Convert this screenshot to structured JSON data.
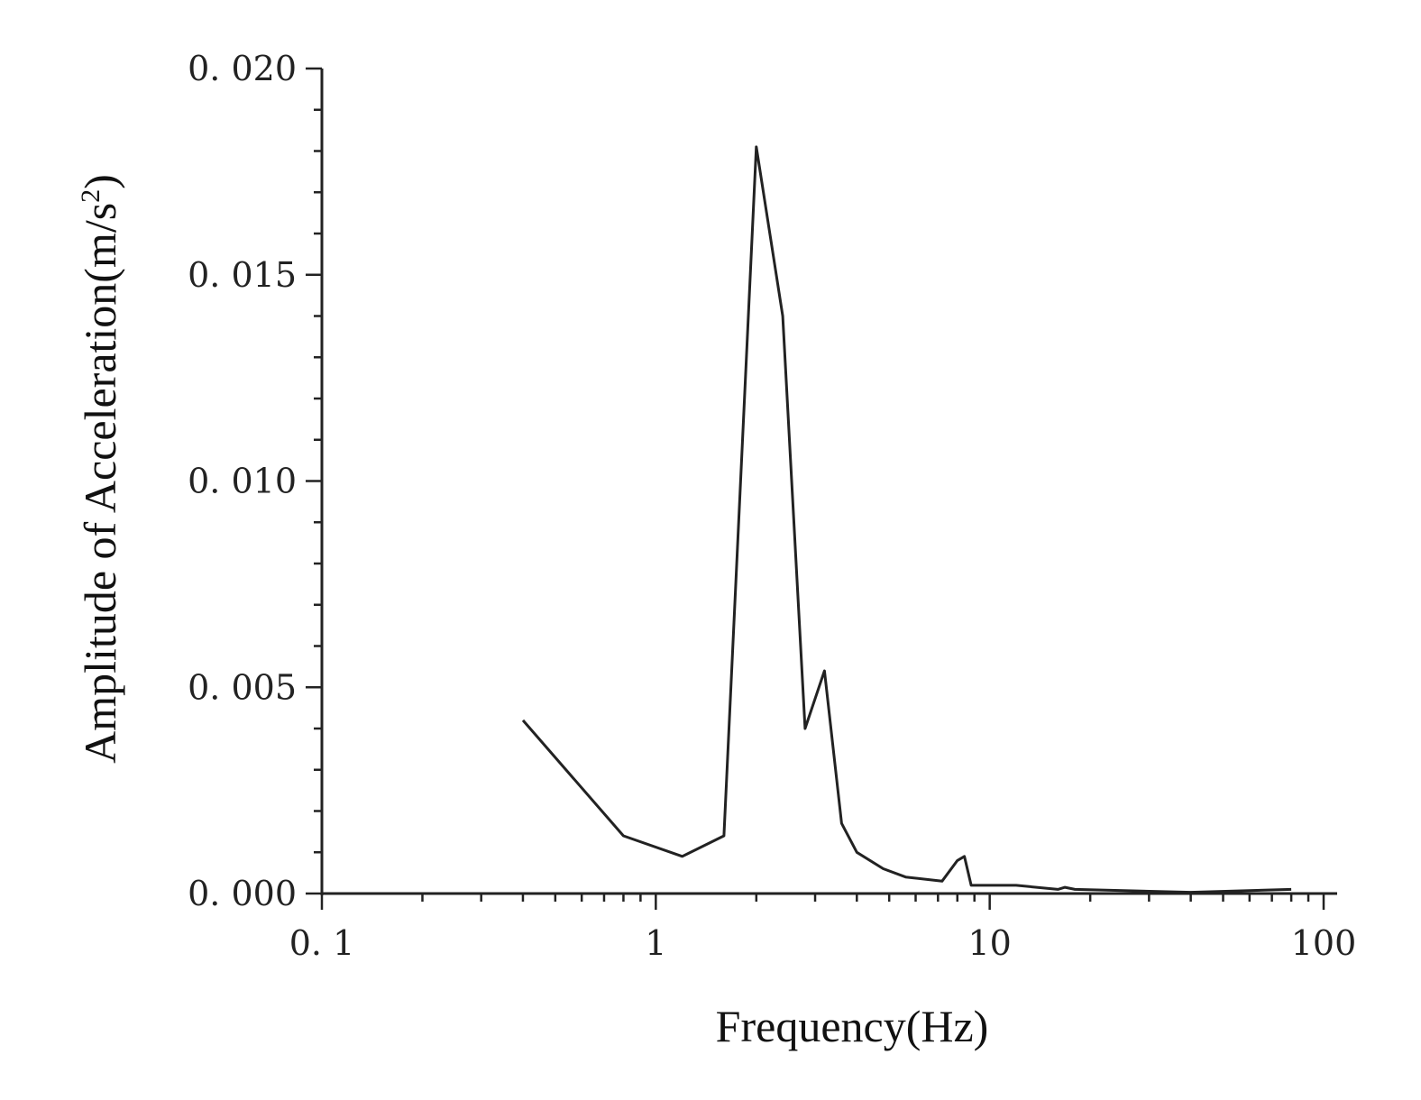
{
  "chart_data": {
    "type": "line",
    "xlabel": "Frequency(Hz)",
    "ylabel_main": "Amplitude of  Acceleration(m/s",
    "ylabel_sup": "2",
    "ylabel_close": ")",
    "xscale": "log",
    "xlim": [
      0.1,
      100
    ],
    "ylim": [
      0,
      0.02
    ],
    "xticks": [
      {
        "value": 0.1,
        "label": "0. 1"
      },
      {
        "value": 1,
        "label": "1"
      },
      {
        "value": 10,
        "label": "10"
      },
      {
        "value": 100,
        "label": "100"
      }
    ],
    "yticks": [
      {
        "value": 0.0,
        "label": "0. 000"
      },
      {
        "value": 0.005,
        "label": "0. 005"
      },
      {
        "value": 0.01,
        "label": "0. 010"
      },
      {
        "value": 0.015,
        "label": "0. 015"
      },
      {
        "value": 0.02,
        "label": "0. 020"
      }
    ],
    "series": [
      {
        "x": [
          0.4,
          0.8,
          1.2,
          1.6,
          2.0,
          2.4,
          2.8,
          3.2,
          3.6,
          4.0,
          4.8,
          5.6,
          7.2,
          8.0,
          8.4,
          8.8,
          12.0,
          16.0,
          16.8,
          18.0,
          40.0,
          80.0
        ],
        "y": [
          0.0042,
          0.0014,
          0.0009,
          0.0014,
          0.0181,
          0.014,
          0.004,
          0.0054,
          0.0017,
          0.001,
          0.0006,
          0.0004,
          0.0003,
          0.0008,
          0.0009,
          0.0002,
          0.0002,
          0.0001,
          0.00015,
          0.0001,
          3e-05,
          0.0001
        ]
      }
    ],
    "grid": false,
    "legend": "none"
  }
}
